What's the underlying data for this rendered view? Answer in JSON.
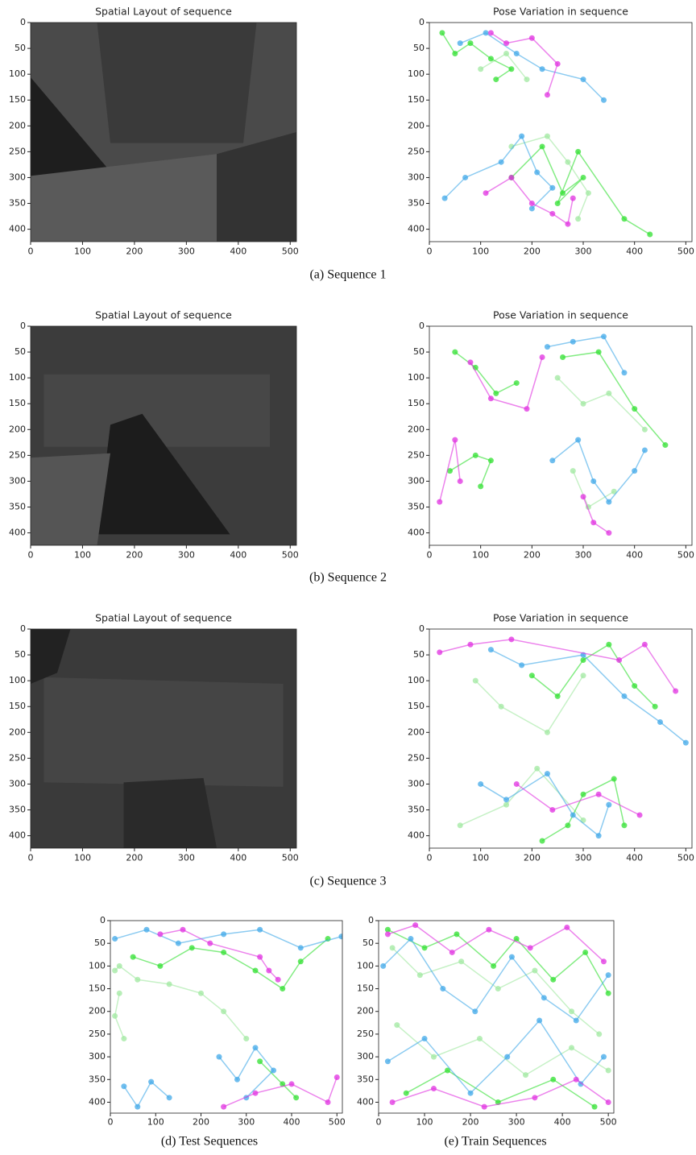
{
  "figures": [
    {
      "caption": "(a) Sequence 1",
      "panels": [
        {
          "type": "image",
          "title": "Spatial Layout of sequence",
          "xlim": [
            0,
            512
          ],
          "ylim": [
            0,
            424
          ],
          "y_inverted": true,
          "xticks": [
            0,
            100,
            200,
            300,
            400,
            500
          ],
          "yticks": [
            0,
            50,
            100,
            150,
            200,
            250,
            300,
            350,
            400
          ]
        },
        {
          "type": "scatter",
          "title": "Pose Variation in sequence",
          "xlim": [
            0,
            512
          ],
          "ylim": [
            0,
            424
          ],
          "y_inverted": true,
          "xticks": [
            0,
            100,
            200,
            300,
            400,
            500
          ],
          "yticks": [
            0,
            50,
            100,
            150,
            200,
            250,
            300,
            350,
            400
          ],
          "series": [
            {
              "color": "#a0e8a0",
              "x": [
                100,
                150,
                190,
                null,
                160,
                230,
                270,
                310,
                290
              ],
              "y": [
                90,
                60,
                110,
                null,
                240,
                220,
                270,
                330,
                380
              ]
            },
            {
              "color": "#30e030",
              "x": [
                25,
                50,
                80,
                120,
                160,
                130,
                null,
                160,
                220,
                260,
                300,
                250,
                290,
                380,
                430
              ],
              "y": [
                20,
                60,
                40,
                70,
                90,
                110,
                null,
                300,
                240,
                330,
                300,
                350,
                250,
                380,
                410
              ]
            },
            {
              "color": "#40a8e8",
              "x": [
                60,
                110,
                170,
                220,
                300,
                340,
                null,
                30,
                70,
                140,
                180,
                210,
                240,
                200
              ],
              "y": [
                40,
                20,
                60,
                90,
                110,
                150,
                null,
                340,
                300,
                270,
                220,
                290,
                320,
                360
              ]
            },
            {
              "color": "#e030e0",
              "x": [
                120,
                150,
                200,
                250,
                230,
                null,
                110,
                160,
                200,
                240,
                270,
                280
              ],
              "y": [
                20,
                40,
                30,
                80,
                140,
                null,
                330,
                300,
                350,
                370,
                390,
                340
              ]
            }
          ]
        }
      ]
    },
    {
      "caption": "(b) Sequence 2",
      "panels": [
        {
          "type": "image",
          "title": "Spatial Layout of sequence",
          "xlim": [
            0,
            512
          ],
          "ylim": [
            0,
            424
          ],
          "y_inverted": true,
          "xticks": [
            0,
            100,
            200,
            300,
            400,
            500
          ],
          "yticks": [
            0,
            50,
            100,
            150,
            200,
            250,
            300,
            350,
            400
          ]
        },
        {
          "type": "scatter",
          "title": "Pose Variation in sequence",
          "xlim": [
            0,
            512
          ],
          "ylim": [
            0,
            424
          ],
          "y_inverted": true,
          "xticks": [
            0,
            100,
            200,
            300,
            400,
            500
          ],
          "yticks": [
            0,
            50,
            100,
            150,
            200,
            250,
            300,
            350,
            400
          ],
          "series": [
            {
              "color": "#a0e8a0",
              "x": [
                250,
                300,
                350,
                420,
                null,
                280,
                310,
                360
              ],
              "y": [
                100,
                150,
                130,
                200,
                null,
                280,
                350,
                320
              ]
            },
            {
              "color": "#30e030",
              "x": [
                50,
                90,
                130,
                170,
                null,
                260,
                330,
                400,
                460,
                null,
                40,
                90,
                120,
                100
              ],
              "y": [
                50,
                80,
                130,
                110,
                null,
                60,
                50,
                160,
                230,
                null,
                280,
                250,
                260,
                310
              ]
            },
            {
              "color": "#40a8e8",
              "x": [
                230,
                280,
                340,
                380,
                null,
                240,
                290,
                320,
                350,
                400,
                420
              ],
              "y": [
                40,
                30,
                20,
                90,
                null,
                260,
                220,
                300,
                340,
                280,
                240
              ]
            },
            {
              "color": "#e030e0",
              "x": [
                80,
                120,
                190,
                220,
                null,
                300,
                320,
                350,
                null,
                20,
                50,
                60
              ],
              "y": [
                70,
                140,
                160,
                60,
                null,
                330,
                380,
                400,
                null,
                340,
                220,
                300
              ]
            }
          ]
        }
      ]
    },
    {
      "caption": "(c) Sequence 3",
      "panels": [
        {
          "type": "image",
          "title": "Spatial Layout of sequence",
          "xlim": [
            0,
            512
          ],
          "ylim": [
            0,
            424
          ],
          "y_inverted": true,
          "xticks": [
            0,
            100,
            200,
            300,
            400,
            500
          ],
          "yticks": [
            0,
            50,
            100,
            150,
            200,
            250,
            300,
            350,
            400
          ]
        },
        {
          "type": "scatter",
          "title": "Pose Variation in sequence",
          "xlim": [
            0,
            512
          ],
          "ylim": [
            0,
            424
          ],
          "y_inverted": true,
          "xticks": [
            0,
            100,
            200,
            300,
            400,
            500
          ],
          "yticks": [
            0,
            50,
            100,
            150,
            200,
            250,
            300,
            350,
            400
          ],
          "series": [
            {
              "color": "#a0e8a0",
              "x": [
                90,
                140,
                230,
                300,
                null,
                60,
                150,
                210,
                300
              ],
              "y": [
                100,
                150,
                200,
                90,
                null,
                380,
                340,
                270,
                370
              ]
            },
            {
              "color": "#30e030",
              "x": [
                200,
                250,
                300,
                350,
                400,
                440,
                null,
                220,
                270,
                300,
                360,
                380
              ],
              "y": [
                90,
                130,
                60,
                30,
                110,
                150,
                null,
                410,
                380,
                320,
                290,
                380
              ]
            },
            {
              "color": "#40a8e8",
              "x": [
                120,
                180,
                300,
                380,
                450,
                500,
                null,
                100,
                150,
                230,
                280,
                330,
                350
              ],
              "y": [
                40,
                70,
                50,
                130,
                180,
                220,
                null,
                300,
                330,
                280,
                360,
                400,
                340
              ]
            },
            {
              "color": "#e030e0",
              "x": [
                20,
                80,
                160,
                370,
                420,
                480,
                null,
                170,
                240,
                330,
                410
              ],
              "y": [
                45,
                30,
                20,
                60,
                30,
                120,
                null,
                300,
                350,
                320,
                360
              ]
            }
          ]
        }
      ]
    },
    {
      "caption": "(d) Test Sequences",
      "panels": [
        {
          "type": "scatter",
          "xlim": [
            0,
            512
          ],
          "ylim": [
            0,
            424
          ],
          "y_inverted": true,
          "xticks": [
            0,
            100,
            200,
            300,
            400,
            500
          ],
          "yticks": [
            0,
            50,
            100,
            150,
            200,
            250,
            300,
            350,
            400
          ],
          "series": [
            {
              "color": "#a0e8a0",
              "x": [
                10,
                20,
                60,
                130,
                200,
                250,
                300,
                null,
                20,
                10,
                30
              ],
              "y": [
                110,
                100,
                130,
                140,
                160,
                200,
                260,
                null,
                160,
                210,
                260
              ]
            },
            {
              "color": "#30e030",
              "x": [
                50,
                110,
                180,
                250,
                320,
                380,
                420,
                480,
                null,
                330,
                380,
                410
              ],
              "y": [
                80,
                100,
                60,
                70,
                110,
                150,
                90,
                40,
                null,
                310,
                360,
                390
              ]
            },
            {
              "color": "#40a8e8",
              "x": [
                10,
                80,
                150,
                250,
                330,
                420,
                510,
                null,
                240,
                280,
                320,
                360,
                300,
                null,
                30,
                60,
                90,
                130
              ],
              "y": [
                40,
                20,
                50,
                30,
                20,
                60,
                35,
                null,
                300,
                350,
                280,
                330,
                390,
                null,
                365,
                410,
                355,
                390
              ]
            },
            {
              "color": "#e030e0",
              "x": [
                110,
                160,
                220,
                330,
                350,
                370,
                null,
                250,
                320,
                400,
                480,
                500
              ],
              "y": [
                30,
                20,
                50,
                80,
                110,
                130,
                null,
                410,
                380,
                360,
                400,
                345
              ]
            }
          ]
        }
      ]
    },
    {
      "caption": "(e) Train Sequences",
      "panels": [
        {
          "type": "scatter",
          "xlim": [
            0,
            512
          ],
          "ylim": [
            0,
            424
          ],
          "y_inverted": true,
          "xticks": [
            0,
            100,
            200,
            300,
            400,
            500
          ],
          "yticks": [
            0,
            50,
            100,
            150,
            200,
            250,
            300,
            350,
            400
          ],
          "series": [
            {
              "color": "#a0e8a0",
              "x": [
                30,
                90,
                180,
                260,
                340,
                420,
                480,
                null,
                40,
                120,
                220,
                320,
                420,
                500
              ],
              "y": [
                60,
                120,
                90,
                150,
                110,
                200,
                250,
                null,
                230,
                300,
                260,
                340,
                280,
                330
              ]
            },
            {
              "color": "#30e030",
              "x": [
                20,
                100,
                170,
                250,
                300,
                380,
                450,
                500,
                null,
                60,
                150,
                260,
                380,
                470
              ],
              "y": [
                20,
                60,
                30,
                100,
                40,
                130,
                70,
                160,
                null,
                380,
                330,
                400,
                350,
                410
              ]
            },
            {
              "color": "#40a8e8",
              "x": [
                10,
                70,
                140,
                210,
                290,
                360,
                430,
                500,
                null,
                20,
                100,
                200,
                280,
                350,
                440,
                490
              ],
              "y": [
                100,
                40,
                150,
                200,
                80,
                170,
                220,
                120,
                null,
                310,
                260,
                380,
                300,
                220,
                360,
                300
              ]
            },
            {
              "color": "#e030e0",
              "x": [
                20,
                80,
                160,
                240,
                330,
                410,
                490,
                null,
                30,
                120,
                230,
                340,
                430,
                500
              ],
              "y": [
                30,
                10,
                70,
                20,
                60,
                15,
                90,
                null,
                400,
                370,
                410,
                390,
                350,
                400
              ]
            }
          ]
        }
      ]
    }
  ]
}
